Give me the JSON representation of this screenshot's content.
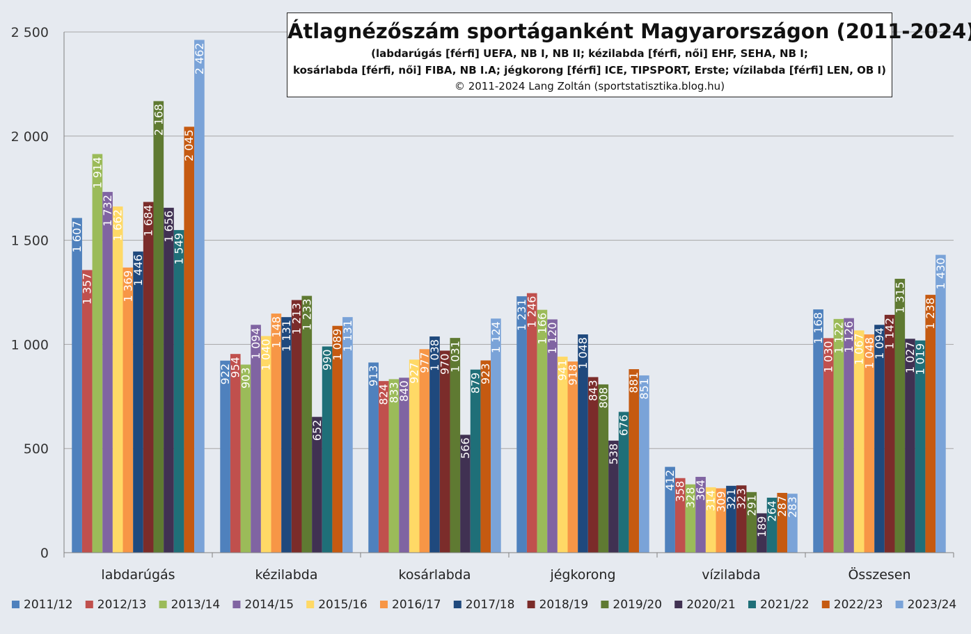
{
  "title": "Átlagnézőszám sportáganként Magyarországon (2011-2024)",
  "subtitle_line1": "(labdarúgás [férfi] UEFA, NB I, NB II; kézilabda [férfi, női] EHF, SEHA, NB I;",
  "subtitle_line2": "kosárlabda [férfi, női] FIBA, NB I.A; jégkorong [férfi] ICE, TIPSPORT, Erste; vízilabda [férfi] LEN, OB I)",
  "copyright": "© 2011-2024 Lang Zoltán (sportstatisztika.blog.hu)",
  "chart_data": {
    "type": "bar",
    "title": "Átlagnézőszám sportáganként Magyarországon (2011-2024)",
    "categories": [
      "labdarúgás",
      "kézilabda",
      "kosárlabda",
      "jégkorong",
      "vízilabda",
      "Összesen"
    ],
    "ylim": [
      0,
      2500
    ],
    "yticks": [
      0,
      500,
      1000,
      1500,
      2000,
      2500
    ],
    "ytick_labels": [
      "0",
      "500",
      "1 000",
      "1 500",
      "2 000",
      "2 500"
    ],
    "grid": true,
    "legend_position": "bottom",
    "series": [
      {
        "name": "2011/12",
        "color": "#4f81bd",
        "values": [
          1607,
          922,
          913,
          1231,
          412,
          1168
        ]
      },
      {
        "name": "2012/13",
        "color": "#c0504d",
        "values": [
          1357,
          954,
          824,
          1246,
          358,
          1030
        ]
      },
      {
        "name": "2013/14",
        "color": "#9bbb59",
        "values": [
          1914,
          903,
          833,
          1166,
          328,
          1122
        ]
      },
      {
        "name": "2014/15",
        "color": "#8064a2",
        "values": [
          1732,
          1094,
          840,
          1120,
          364,
          1126
        ]
      },
      {
        "name": "2015/16",
        "color": "#ffd966",
        "values": [
          1662,
          1040,
          927,
          941,
          314,
          1067
        ]
      },
      {
        "name": "2016/17",
        "color": "#f79646",
        "values": [
          1369,
          1148,
          977,
          918,
          309,
          1048
        ]
      },
      {
        "name": "2017/18",
        "color": "#1f497d",
        "values": [
          1446,
          1131,
          1038,
          1048,
          321,
          1094
        ]
      },
      {
        "name": "2018/19",
        "color": "#7b2c2a",
        "values": [
          1684,
          1213,
          970,
          843,
          323,
          1142
        ]
      },
      {
        "name": "2019/20",
        "color": "#5f7a32",
        "values": [
          2168,
          1233,
          1031,
          808,
          291,
          1315
        ]
      },
      {
        "name": "2020/21",
        "color": "#403152",
        "values": [
          1656,
          652,
          566,
          538,
          189,
          1027
        ]
      },
      {
        "name": "2021/22",
        "color": "#1f6f78",
        "values": [
          1549,
          990,
          879,
          676,
          264,
          1019
        ]
      },
      {
        "name": "2022/23",
        "color": "#c55a11",
        "values": [
          2045,
          1089,
          923,
          881,
          287,
          1238
        ]
      },
      {
        "name": "2023/24",
        "color": "#7aa3d8",
        "values": [
          2462,
          1131,
          1124,
          851,
          283,
          1430
        ]
      }
    ]
  }
}
